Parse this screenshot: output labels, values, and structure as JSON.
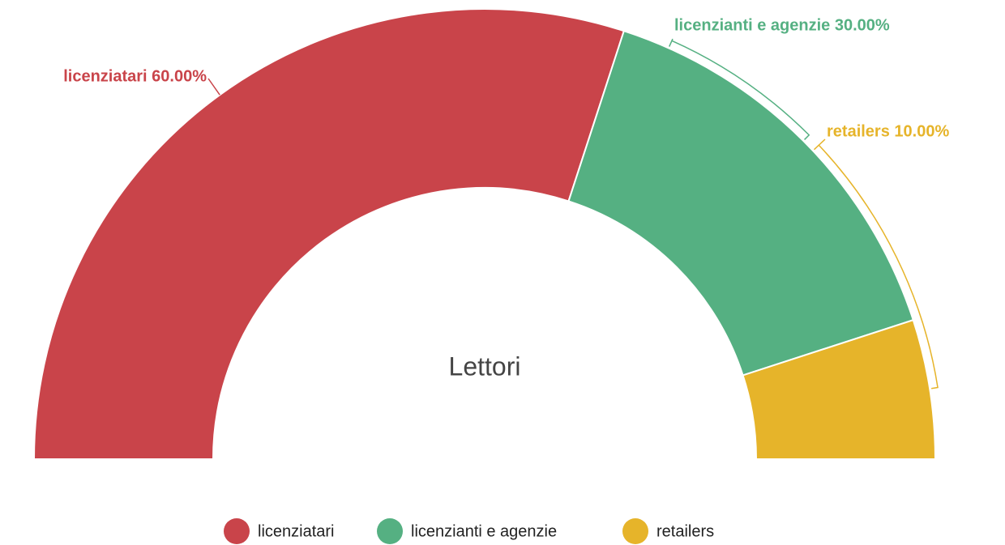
{
  "chart_data": {
    "type": "pie",
    "title": "Lettori",
    "categories": [
      "licenziatari",
      "licenziantі e agenzie",
      "retailers"
    ],
    "values": [
      60,
      30,
      10
    ],
    "value_labels": [
      "licenziatari 60.00%",
      "licenzianti e agenzie 30.00%",
      "retailers 10.00%"
    ],
    "colors": [
      "#c9444a",
      "#55b082",
      "#e6b42a"
    ],
    "legend": "bottom"
  }
}
